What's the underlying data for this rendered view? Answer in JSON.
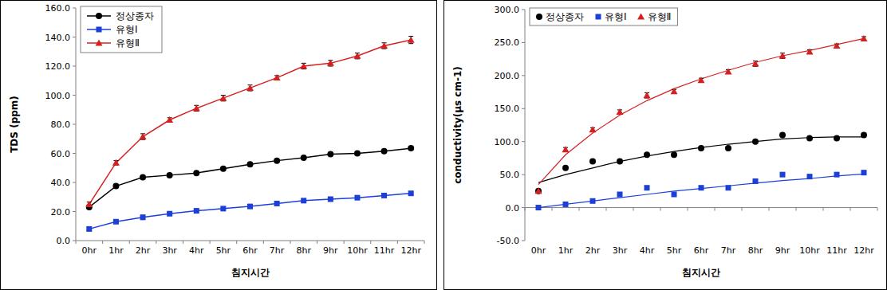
{
  "chart_data": [
    {
      "type": "line",
      "xlabel": "침지시간",
      "ylabel": "TDS (ppm)",
      "categories": [
        "0hr",
        "1hr",
        "2hr",
        "3hr",
        "4hr",
        "5hr",
        "6hr",
        "7hr",
        "8hr",
        "9hr",
        "10hr",
        "11hr",
        "12hr"
      ],
      "series": [
        {
          "name": "정상종자",
          "color": "#000000",
          "marker": "circle",
          "line_style": "solid",
          "values": [
            23,
            37.5,
            43.5,
            45,
            46.5,
            49.5,
            52.5,
            55,
            57,
            59.5,
            60,
            61.5,
            63.5
          ],
          "errors": [
            1,
            1,
            1,
            1,
            1,
            1,
            1,
            1,
            1,
            1,
            1,
            1,
            1
          ]
        },
        {
          "name": "유형Ⅰ",
          "color": "#1c3fd8",
          "marker": "square",
          "line_style": "solid",
          "values": [
            8,
            13,
            16,
            18.5,
            20.5,
            22,
            23.5,
            25.5,
            27.5,
            28.5,
            29.5,
            31,
            32.5
          ],
          "errors": [
            1,
            1,
            1.5,
            1,
            1,
            1,
            1,
            1,
            1,
            1,
            1,
            1,
            1
          ]
        },
        {
          "name": "유형Ⅱ",
          "color": "#d62020",
          "marker": "triangle",
          "line_style": "solid",
          "values": [
            25,
            53.5,
            71.5,
            83,
            91,
            98,
            105,
            112,
            120,
            122,
            127,
            134,
            138
          ],
          "errors": [
            1.5,
            1.5,
            2,
            1.5,
            2,
            2,
            2,
            1.5,
            2,
            2,
            2,
            2,
            2.5
          ]
        }
      ],
      "ylim": [
        0,
        160
      ],
      "yticks": [
        {
          "value": 0,
          "label": "0.0"
        },
        {
          "value": 20,
          "label": "20.0"
        },
        {
          "value": 40,
          "label": "40.0"
        },
        {
          "value": 60,
          "label": "60.0"
        },
        {
          "value": 80,
          "label": "80.0"
        },
        {
          "value": 100,
          "label": "100.0"
        },
        {
          "value": 120,
          "label": "120.0"
        },
        {
          "value": 140,
          "label": "140.0"
        },
        {
          "value": 160,
          "label": "160.0"
        }
      ],
      "grid": false,
      "legend": "upper left"
    },
    {
      "type": "scatter",
      "xlabel": "침지시간",
      "ylabel": "conductivity(μs cm-1)",
      "categories": [
        "0hr",
        "1hr",
        "2hr",
        "3hr",
        "4hr",
        "5hr",
        "6hr",
        "7hr",
        "8hr",
        "9hr",
        "10hr",
        "11hr",
        "12hr"
      ],
      "series": [
        {
          "name": "정상종자",
          "color": "#000000",
          "marker": "circle",
          "values": [
            25,
            60,
            70,
            70,
            80,
            80,
            90,
            90,
            100,
            110,
            105,
            105,
            110
          ],
          "trend": [
            38,
            50,
            60,
            70,
            78,
            85,
            91,
            96,
            100,
            104,
            106,
            107,
            107
          ]
        },
        {
          "name": "유형Ⅰ",
          "color": "#1c3fd8",
          "marker": "square",
          "values": [
            0,
            5,
            10,
            20,
            30,
            20,
            30,
            30,
            40,
            50,
            47,
            50,
            53
          ],
          "trend": [
            0,
            5,
            10,
            15,
            20,
            25,
            29,
            33,
            37,
            41,
            44,
            48,
            51
          ]
        },
        {
          "name": "유형Ⅱ",
          "color": "#d62020",
          "marker": "triangle",
          "values": [
            25,
            88,
            118,
            145,
            170,
            176,
            193,
            206,
            218,
            230,
            236,
            245,
            256
          ],
          "errors": [
            2,
            3,
            3,
            3,
            4,
            3,
            3,
            3,
            4,
            4,
            3,
            3,
            3
          ],
          "trend": [
            35,
            80,
            113,
            140,
            162,
            180,
            195,
            208,
            220,
            230,
            238,
            247,
            256
          ]
        }
      ],
      "ylim": [
        -50,
        300
      ],
      "yticks": [
        {
          "value": -50,
          "label": "-50.0"
        },
        {
          "value": 0,
          "label": "0.0"
        },
        {
          "value": 50,
          "label": "50.0"
        },
        {
          "value": 100,
          "label": "100.0"
        },
        {
          "value": 150,
          "label": "150.0"
        },
        {
          "value": 200,
          "label": "200.0"
        },
        {
          "value": 250,
          "label": "250.0"
        },
        {
          "value": 300,
          "label": "300.0"
        }
      ],
      "grid": false,
      "legend": "upper left"
    }
  ]
}
